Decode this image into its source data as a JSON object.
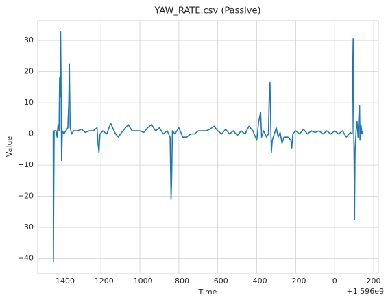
{
  "chart_data": {
    "type": "line",
    "title": "YAW_RATE.csv (Passive)",
    "x_label": "Time",
    "y_label": "Value",
    "x_offset_label": "+1.596e9",
    "color": "#1f77b4",
    "grid": true,
    "xlim": [
      -1524.5,
      224.5
    ],
    "ylim": [
      -44.7,
      36.4
    ],
    "xticks": [
      {
        "value": -1400,
        "label": "−1400"
      },
      {
        "value": -1200,
        "label": "−1200"
      },
      {
        "value": -1000,
        "label": "−1000"
      },
      {
        "value": -800,
        "label": "−800"
      },
      {
        "value": -600,
        "label": "−600"
      },
      {
        "value": -400,
        "label": "−400"
      },
      {
        "value": -200,
        "label": "−200"
      },
      0,
      200
    ],
    "yticks": [
      {
        "value": -40,
        "label": "−40"
      },
      {
        "value": -30,
        "label": "−30"
      },
      {
        "value": -20,
        "label": "−20"
      },
      {
        "value": -10,
        "label": "−10"
      },
      0,
      10,
      20,
      30
    ],
    "x": [
      -1445,
      -1444,
      -1440,
      -1430,
      -1425,
      -1420,
      -1415,
      -1412,
      -1410,
      -1407,
      -1405,
      -1402,
      -1398,
      -1390,
      -1380,
      -1370,
      -1365,
      -1362,
      -1358,
      -1350,
      -1340,
      -1320,
      -1300,
      -1280,
      -1260,
      -1240,
      -1220,
      -1215,
      -1210,
      -1205,
      -1190,
      -1170,
      -1150,
      -1140,
      -1125,
      -1110,
      -1100,
      -1080,
      -1060,
      -1040,
      -1020,
      -1000,
      -980,
      -960,
      -940,
      -920,
      -900,
      -880,
      -860,
      -845,
      -840,
      -837,
      -833,
      -820,
      -800,
      -780,
      -760,
      -740,
      -720,
      -700,
      -680,
      -660,
      -640,
      -620,
      -600,
      -580,
      -560,
      -540,
      -520,
      -500,
      -480,
      -460,
      -440,
      -420,
      -400,
      -390,
      -380,
      -375,
      -365,
      -350,
      -340,
      -335,
      -332,
      -328,
      -325,
      -320,
      -300,
      -290,
      -280,
      -270,
      -260,
      -240,
      -225,
      -220,
      -215,
      -200,
      -180,
      -160,
      -140,
      -120,
      -100,
      -80,
      -60,
      -40,
      -20,
      0,
      20,
      40,
      60,
      80,
      90,
      92,
      95,
      97,
      100,
      102,
      105,
      110,
      115,
      120,
      125,
      128,
      130,
      135,
      140,
      145
    ],
    "values": [
      1,
      -41,
      1,
      1,
      -1,
      3,
      1,
      18,
      12,
      32.7,
      20,
      -8.5,
      1,
      0,
      1,
      2,
      10,
      22.5,
      2,
      0,
      1,
      1,
      1.5,
      0.5,
      1,
      1,
      2,
      -3,
      -6,
      0,
      1,
      0,
      3.5,
      2,
      0,
      -1,
      0,
      1.5,
      3,
      1,
      1,
      1,
      0.5,
      2,
      3,
      1,
      2,
      0,
      1,
      -1,
      -21,
      -15,
      1,
      0,
      2,
      -1,
      -1,
      0,
      0,
      1,
      1,
      1,
      1.5,
      2.5,
      1,
      0,
      1.5,
      0,
      1,
      -0.5,
      1,
      0,
      2.5,
      1,
      -2,
      4,
      7,
      -1,
      1,
      -1,
      0,
      15,
      16.5,
      3,
      -6,
      -2,
      2,
      -1,
      0.5,
      -3,
      -1,
      -1,
      -2,
      -4.5,
      0,
      1,
      0,
      1.5,
      0,
      1,
      0.5,
      1,
      0,
      1,
      0,
      1,
      0,
      1,
      -1,
      0.5,
      0,
      18,
      30.5,
      10,
      -10,
      -27.5,
      -5,
      1,
      4,
      -1,
      7,
      9,
      -2,
      3,
      0,
      1
    ]
  }
}
